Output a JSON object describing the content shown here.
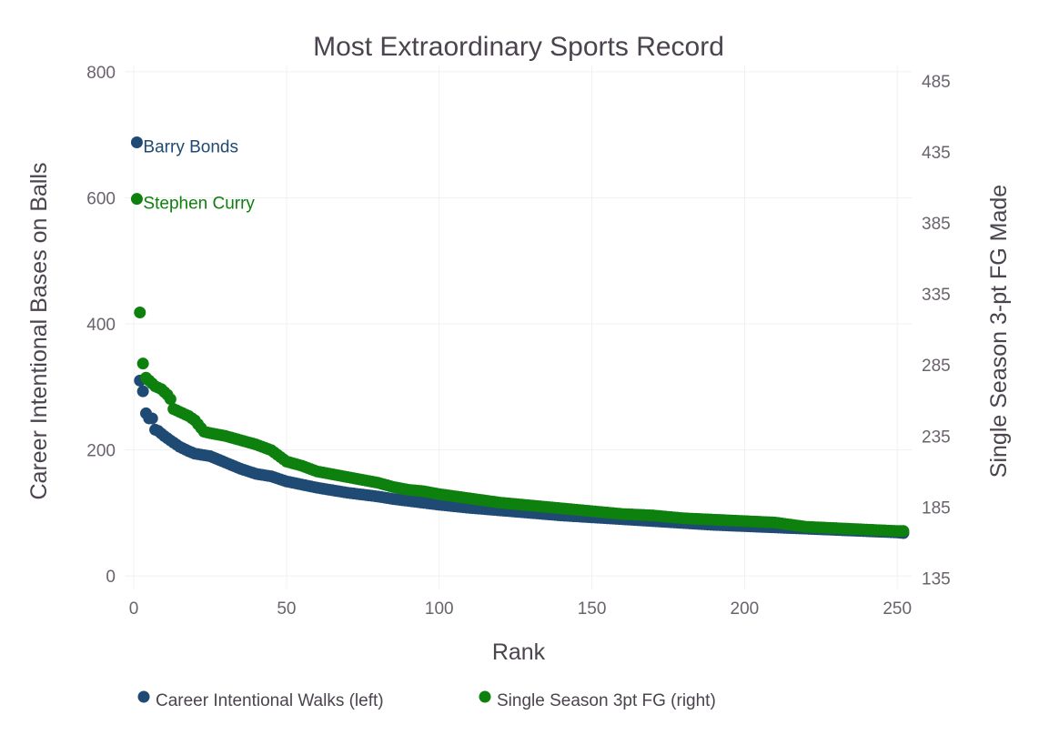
{
  "chart_data": {
    "type": "scatter",
    "title": "Most Extraordinary Sports Record",
    "xlabel": "Rank",
    "ylabel_left": "Career Intentional Bases on Balls",
    "ylabel_right": "Single Season 3-pt FG Made",
    "xlim": [
      -3,
      255
    ],
    "ylim_left": [
      -20,
      810
    ],
    "ylim_right": [
      127.5,
      496
    ],
    "x_ticks": [
      0,
      50,
      100,
      150,
      200,
      250
    ],
    "y_left_ticks": [
      0,
      200,
      400,
      600,
      800
    ],
    "y_right_ticks": [
      135,
      185,
      235,
      285,
      335,
      385,
      435,
      485
    ],
    "grid": true,
    "legend_position": "bottom",
    "colors": {
      "walks": "#1f4a73",
      "threes": "#0d800d"
    },
    "annotations": [
      {
        "text": "Barry Bonds",
        "series": "walks",
        "x": 1,
        "y": 688
      },
      {
        "text": "Stephen Curry",
        "series": "threes",
        "x": 1,
        "y": 402
      }
    ],
    "series": [
      {
        "key": "walks",
        "name": "Career Intentional Walks (left)",
        "axis": "left",
        "points": [
          [
            1,
            688
          ],
          [
            2,
            310
          ],
          [
            3,
            293
          ],
          [
            4,
            258
          ],
          [
            5,
            250
          ],
          [
            6,
            250
          ],
          [
            7,
            232
          ],
          [
            8,
            230
          ],
          [
            9,
            226
          ],
          [
            10,
            222
          ],
          [
            12,
            215
          ],
          [
            15,
            205
          ],
          [
            18,
            198
          ],
          [
            20,
            194
          ],
          [
            25,
            190
          ],
          [
            30,
            180
          ],
          [
            35,
            170
          ],
          [
            40,
            162
          ],
          [
            45,
            158
          ],
          [
            50,
            150
          ],
          [
            55,
            145
          ],
          [
            60,
            140
          ],
          [
            65,
            136
          ],
          [
            70,
            132
          ],
          [
            75,
            129
          ],
          [
            80,
            126
          ],
          [
            85,
            122
          ],
          [
            90,
            119
          ],
          [
            95,
            116
          ],
          [
            100,
            113
          ],
          [
            110,
            108
          ],
          [
            120,
            104
          ],
          [
            130,
            100
          ],
          [
            140,
            96
          ],
          [
            150,
            93
          ],
          [
            160,
            90
          ],
          [
            170,
            87
          ],
          [
            180,
            84
          ],
          [
            190,
            81
          ],
          [
            200,
            79
          ],
          [
            210,
            77
          ],
          [
            220,
            75
          ],
          [
            230,
            73
          ],
          [
            240,
            71
          ],
          [
            250,
            69
          ],
          [
            252,
            68
          ]
        ]
      },
      {
        "key": "threes",
        "name": "Single Season 3pt FG (right)",
        "axis": "right",
        "points": [
          [
            1,
            402
          ],
          [
            2,
            322
          ],
          [
            3,
            286
          ],
          [
            4,
            276
          ],
          [
            5,
            274
          ],
          [
            6,
            272
          ],
          [
            7,
            270
          ],
          [
            8,
            269
          ],
          [
            9,
            268
          ],
          [
            10,
            266
          ],
          [
            11,
            264
          ],
          [
            12,
            261
          ],
          [
            13,
            254
          ],
          [
            15,
            252
          ],
          [
            18,
            249
          ],
          [
            20,
            246
          ],
          [
            23,
            238
          ],
          [
            25,
            237
          ],
          [
            30,
            235
          ],
          [
            35,
            232
          ],
          [
            40,
            229
          ],
          [
            45,
            225
          ],
          [
            50,
            217
          ],
          [
            55,
            214
          ],
          [
            60,
            210
          ],
          [
            65,
            208
          ],
          [
            70,
            206
          ],
          [
            75,
            204
          ],
          [
            80,
            202
          ],
          [
            85,
            199
          ],
          [
            90,
            197
          ],
          [
            95,
            196
          ],
          [
            100,
            194
          ],
          [
            110,
            191
          ],
          [
            120,
            188
          ],
          [
            130,
            186
          ],
          [
            140,
            184
          ],
          [
            150,
            182
          ],
          [
            160,
            180
          ],
          [
            170,
            179
          ],
          [
            180,
            177
          ],
          [
            190,
            176
          ],
          [
            200,
            175
          ],
          [
            210,
            174
          ],
          [
            220,
            171
          ],
          [
            230,
            170
          ],
          [
            240,
            169
          ],
          [
            250,
            168
          ],
          [
            252,
            168
          ]
        ]
      }
    ]
  }
}
